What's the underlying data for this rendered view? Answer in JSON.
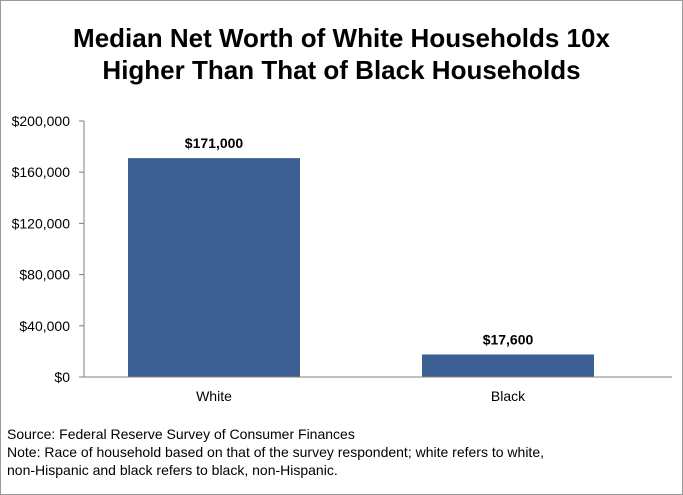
{
  "title_lines": [
    "Median Net Worth of White Households 10x",
    "Higher Than That of Black Households"
  ],
  "chart_data": {
    "type": "bar",
    "title": "Median Net Worth of White Households 10x Higher Than That of Black Households",
    "categories": [
      "White",
      "Black"
    ],
    "values": [
      171000,
      17600
    ],
    "data_labels": [
      "$171,000",
      "$17,600"
    ],
    "ylim": [
      0,
      200000
    ],
    "yticks": [
      0,
      40000,
      80000,
      120000,
      160000,
      200000
    ],
    "ytick_labels": [
      "$0",
      "$40,000",
      "$80,000",
      "$120,000",
      "$160,000",
      "$200,000"
    ],
    "xlabel": "",
    "ylabel": "",
    "grid": false,
    "bar_color": "#3b5f93"
  },
  "source": "Source: Federal Reserve Survey of Consumer Finances",
  "note": "Note: Race of household based on that of the survey respondent; white refers to white,\nnon-Hispanic and black refers to black, non-Hispanic."
}
